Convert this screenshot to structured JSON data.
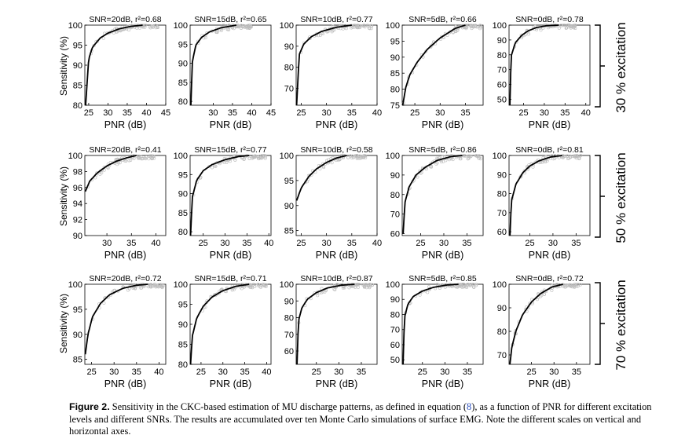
{
  "figure": {
    "ylabel": "Sensitivity (%)",
    "xlabel": "PNR (dB)",
    "row_labels": [
      "30 % excitation",
      "50 % excitation",
      "70 % excitation"
    ]
  },
  "caption": {
    "lead": "Figure 2.",
    "text_1": " Sensitivity in the CKC-based estimation of MU discharge patterns, as defined in equation (",
    "ref": "8",
    "text_2": "), as a function of PNR for different excitation levels and different SNRs. The results are accumulated over ten Monte Carlo simulations of surface EMG. Note the different scales on vertical and horizontal axes."
  },
  "chart_data": [
    {
      "type": "scatter",
      "title": "SNR=20dB, r²=0.68",
      "xlabel": "PNR (dB)",
      "ylabel": "Sensitivity (%)",
      "xlim": [
        24,
        45
      ],
      "ylim": [
        80,
        100
      ],
      "xticks": [
        25,
        30,
        35,
        40,
        45
      ],
      "yticks": [
        80,
        85,
        90,
        95,
        100
      ],
      "fit_curve": {
        "x": [
          24.2,
          25,
          26,
          28,
          30,
          33,
          36,
          39
        ],
        "y": [
          80,
          91.5,
          94.5,
          96.8,
          98,
          99.1,
          99.7,
          100
        ]
      }
    },
    {
      "type": "scatter",
      "title": "SNR=15dB, r²=0.65",
      "xlabel": "PNR (dB)",
      "ylabel": "",
      "xlim": [
        24,
        45
      ],
      "ylim": [
        79,
        100
      ],
      "xticks": [
        30,
        35,
        40,
        45
      ],
      "yticks": [
        80,
        85,
        90,
        95,
        100
      ],
      "fit_curve": {
        "x": [
          24.2,
          24.6,
          25.5,
          27,
          29,
          32,
          36
        ],
        "y": [
          79,
          90.5,
          94.8,
          96.8,
          98.2,
          99.3,
          100
        ]
      }
    },
    {
      "type": "scatter",
      "title": "SNR=10dB, r²=0.77",
      "xlabel": "PNR (dB)",
      "ylabel": "",
      "xlim": [
        24,
        40
      ],
      "ylim": [
        62,
        100
      ],
      "xticks": [
        25,
        30,
        35,
        40
      ],
      "yticks": [
        70,
        80,
        90,
        100
      ],
      "fit_curve": {
        "x": [
          24.1,
          24.6,
          25.5,
          27,
          29,
          32,
          35
        ],
        "y": [
          62,
          86,
          91,
          94.5,
          97,
          99,
          100
        ]
      }
    },
    {
      "type": "scatter",
      "title": "SNR=5dB, r²=0.66",
      "xlabel": "PNR (dB)",
      "ylabel": "",
      "xlim": [
        22.5,
        38.5
      ],
      "ylim": [
        75,
        100
      ],
      "xticks": [
        25,
        30,
        35
      ],
      "yticks": [
        75,
        80,
        85,
        90,
        95,
        100
      ],
      "fit_curve": {
        "x": [
          22.6,
          23.2,
          24,
          25.5,
          27.5,
          30,
          33,
          35
        ],
        "y": [
          75,
          80.5,
          84.5,
          88.5,
          92.5,
          96,
          99,
          100
        ]
      }
    },
    {
      "type": "scatter",
      "title": "SNR=0dB, r²=0.78",
      "xlabel": "PNR (dB)",
      "ylabel": "",
      "xlim": [
        21.5,
        41
      ],
      "ylim": [
        46,
        100
      ],
      "xticks": [
        25,
        30,
        35,
        40
      ],
      "yticks": [
        50,
        60,
        70,
        80,
        90,
        100
      ],
      "fit_curve": {
        "x": [
          21.7,
          22,
          23,
          24.5,
          26,
          28,
          30.5,
          33.5
        ],
        "y": [
          46,
          79,
          88,
          93,
          96,
          98.3,
          99.6,
          100
        ]
      }
    },
    {
      "type": "scatter",
      "title": "SNR=20dB, r²=0.41",
      "xlabel": "PNR (dB)",
      "ylabel": "Sensitivity (%)",
      "xlim": [
        25.5,
        42
      ],
      "ylim": [
        90,
        100
      ],
      "xticks": [
        30,
        35,
        40
      ],
      "yticks": [
        90,
        92,
        94,
        96,
        98,
        100
      ],
      "fit_curve": {
        "x": [
          25.6,
          26.5,
          28,
          30,
          32,
          34,
          36
        ],
        "y": [
          95.5,
          96.8,
          97.8,
          98.7,
          99.3,
          99.7,
          100
        ]
      }
    },
    {
      "type": "scatter",
      "title": "SNR=15dB, r²=0.77",
      "xlabel": "PNR (dB)",
      "ylabel": "",
      "xlim": [
        22,
        40.5
      ],
      "ylim": [
        79,
        100
      ],
      "xticks": [
        25,
        30,
        35,
        40
      ],
      "yticks": [
        80,
        85,
        90,
        95,
        100
      ],
      "fit_curve": {
        "x": [
          22.1,
          22.5,
          23.5,
          25,
          27,
          30,
          33,
          35.5
        ],
        "y": [
          79,
          89,
          93.5,
          96,
          97.6,
          98.9,
          99.7,
          100
        ]
      }
    },
    {
      "type": "scatter",
      "title": "SNR=10dB, r²=0.58",
      "xlabel": "PNR (dB)",
      "ylabel": "",
      "xlim": [
        24,
        40
      ],
      "ylim": [
        84,
        100
      ],
      "xticks": [
        25,
        30,
        35,
        40
      ],
      "yticks": [
        85,
        90,
        95,
        100
      ],
      "fit_curve": {
        "x": [
          24.1,
          25,
          26.5,
          28,
          30,
          32,
          34
        ],
        "y": [
          91,
          93.5,
          95.8,
          97.3,
          98.6,
          99.5,
          100
        ]
      }
    },
    {
      "type": "scatter",
      "title": "SNR=5dB, r²=0.86",
      "xlabel": "PNR (dB)",
      "ylabel": "",
      "xlim": [
        21,
        38.5
      ],
      "ylim": [
        59,
        100
      ],
      "xticks": [
        25,
        30,
        35
      ],
      "yticks": [
        60,
        70,
        80,
        90,
        100
      ],
      "fit_curve": {
        "x": [
          21.2,
          21.6,
          22.5,
          24,
          26,
          28.5,
          31.5,
          34
        ],
        "y": [
          60,
          76,
          84,
          90,
          94,
          97.4,
          99.4,
          100
        ]
      }
    },
    {
      "type": "scatter",
      "title": "SNR=0dB, r²=0.81",
      "xlabel": "PNR (dB)",
      "ylabel": "",
      "xlim": [
        20.5,
        38
      ],
      "ylim": [
        58,
        100
      ],
      "xticks": [
        25,
        30,
        35
      ],
      "yticks": [
        60,
        70,
        80,
        90,
        100
      ],
      "fit_curve": {
        "x": [
          20.7,
          21,
          22,
          23.5,
          25,
          27,
          29.5,
          32
        ],
        "y": [
          58,
          76,
          85,
          91,
          94.5,
          97.2,
          99.2,
          100
        ]
      }
    },
    {
      "type": "scatter",
      "title": "SNR=20dB, r²=0.72",
      "xlabel": "PNR (dB)",
      "ylabel": "Sensitivity (%)",
      "xlim": [
        23.5,
        41.5
      ],
      "ylim": [
        84,
        100
      ],
      "xticks": [
        25,
        30,
        35,
        40
      ],
      "yticks": [
        85,
        90,
        95,
        100
      ],
      "fit_curve": {
        "x": [
          23.6,
          24.2,
          25.2,
          27,
          29,
          32,
          35,
          37.5
        ],
        "y": [
          86,
          90,
          93.5,
          96.2,
          97.9,
          99.2,
          99.8,
          100
        ]
      }
    },
    {
      "type": "scatter",
      "title": "SNR=15dB, r²=0.71",
      "xlabel": "PNR (dB)",
      "ylabel": "",
      "xlim": [
        22.5,
        41
      ],
      "ylim": [
        80,
        100
      ],
      "xticks": [
        25,
        30,
        35,
        40
      ],
      "yticks": [
        80,
        85,
        90,
        95,
        100
      ],
      "fit_curve": {
        "x": [
          22.6,
          23,
          24,
          25.5,
          27.5,
          30,
          33,
          36
        ],
        "y": [
          80,
          87,
          91.5,
          94.5,
          96.8,
          98.4,
          99.5,
          100
        ]
      }
    },
    {
      "type": "scatter",
      "title": "SNR=10dB, r²=0.87",
      "xlabel": "PNR (dB)",
      "ylabel": "",
      "xlim": [
        20.5,
        38.5
      ],
      "ylim": [
        52,
        100
      ],
      "xticks": [
        25,
        30,
        35
      ],
      "yticks": [
        60,
        70,
        80,
        90,
        100
      ],
      "fit_curve": {
        "x": [
          20.7,
          21,
          21.8,
          23,
          25,
          27.5,
          30.5,
          33.5
        ],
        "y": [
          52,
          78,
          86,
          91,
          95,
          97.8,
          99.4,
          100
        ]
      }
    },
    {
      "type": "scatter",
      "title": "SNR=5dB, r²=0.85",
      "xlabel": "PNR (dB)",
      "ylabel": "",
      "xlim": [
        20.5,
        38.5
      ],
      "ylim": [
        47,
        100
      ],
      "xticks": [
        25,
        30,
        35
      ],
      "yticks": [
        50,
        60,
        70,
        80,
        90,
        100
      ],
      "fit_curve": {
        "x": [
          20.7,
          21,
          21.8,
          23,
          25,
          27.5,
          30.5,
          33
        ],
        "y": [
          47,
          78,
          87,
          92,
          95.5,
          98,
          99.5,
          100
        ]
      }
    },
    {
      "type": "scatter",
      "title": "SNR=0dB, r²=0.72",
      "xlabel": "PNR (dB)",
      "ylabel": "",
      "xlim": [
        20,
        38
      ],
      "ylim": [
        66,
        100
      ],
      "xticks": [
        25,
        30,
        35
      ],
      "yticks": [
        70,
        80,
        90,
        100
      ],
      "fit_curve": {
        "x": [
          20.2,
          20.6,
          21.5,
          23,
          25,
          27,
          29.5,
          32
        ],
        "y": [
          66,
          73,
          80,
          87,
          92.5,
          96,
          98.8,
          100
        ]
      }
    }
  ]
}
